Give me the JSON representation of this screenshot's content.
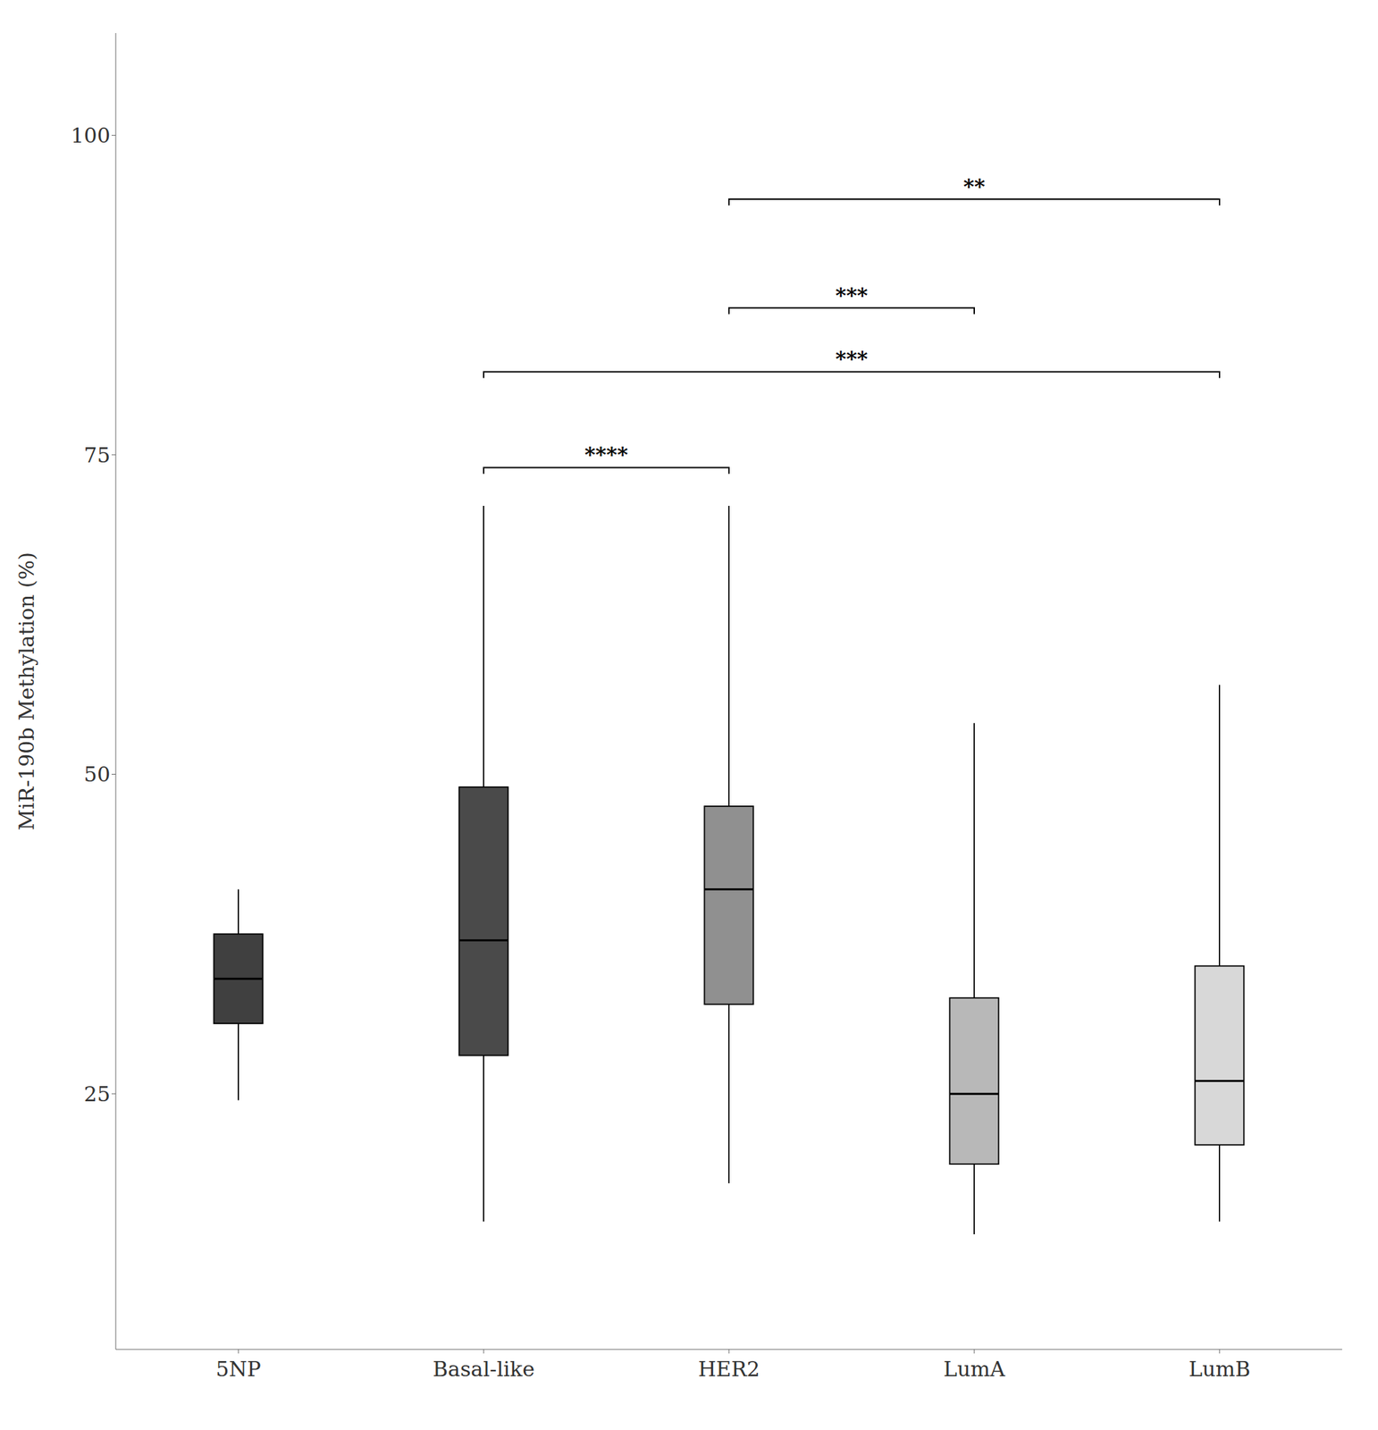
{
  "chart_data": {
    "type": "box",
    "ylabel": "MiR-190b Methylation (%)",
    "categories": [
      "5NP",
      "Basal-like",
      "HER2",
      "LumA",
      "LumB"
    ],
    "colors": [
      "#404040",
      "#4a4a4a",
      "#909090",
      "#b8b8b8",
      "#d8d8d8"
    ],
    "boxes": [
      {
        "whisker_low": 24.5,
        "q1": 30.5,
        "median": 34.0,
        "q3": 37.5,
        "whisker_high": 41.0
      },
      {
        "whisker_low": 15.0,
        "q1": 28.0,
        "median": 37.0,
        "q3": 49.0,
        "whisker_high": 71.0
      },
      {
        "whisker_low": 18.0,
        "q1": 32.0,
        "median": 41.0,
        "q3": 47.5,
        "whisker_high": 71.0
      },
      {
        "whisker_low": 14.0,
        "q1": 19.5,
        "median": 25.0,
        "q3": 32.5,
        "whisker_high": 54.0
      },
      {
        "whisker_low": 15.0,
        "q1": 21.0,
        "median": 26.0,
        "q3": 35.0,
        "whisker_high": 57.0
      }
    ],
    "annotations": [
      {
        "from": "Basal-like",
        "to": "HER2",
        "y": 74.0,
        "label": "****"
      },
      {
        "from": "HER2",
        "to": "LumA",
        "y": 86.5,
        "label": "***"
      },
      {
        "from": "Basal-like",
        "to": "LumB",
        "y": 81.5,
        "label": "***"
      },
      {
        "from": "HER2",
        "to": "LumB",
        "y": 95.0,
        "label": "**"
      }
    ],
    "ylim": [
      5,
      108
    ],
    "yticks": [
      25,
      50,
      75,
      100
    ],
    "grid": false
  }
}
